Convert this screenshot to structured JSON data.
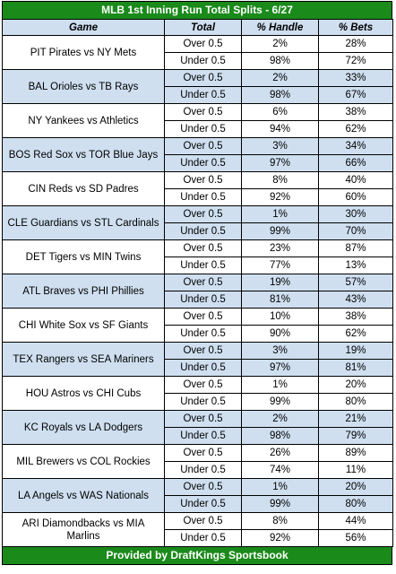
{
  "title": "MLB 1st Inning Run Total Splits - 6/27",
  "headers": [
    "Game",
    "Total",
    "% Handle",
    "% Bets"
  ],
  "footer": "Provided by DraftKings Sportsbook",
  "games": [
    {
      "game": "PIT Pirates vs NY Mets",
      "rows": [
        [
          "Over 0.5",
          "2%",
          "28%"
        ],
        [
          "Under 0.5",
          "98%",
          "72%"
        ]
      ]
    },
    {
      "game": "BAL Orioles vs TB Rays",
      "rows": [
        [
          "Over 0.5",
          "2%",
          "33%"
        ],
        [
          "Under 0.5",
          "98%",
          "67%"
        ]
      ]
    },
    {
      "game": "NY Yankees vs Athletics",
      "rows": [
        [
          "Over 0.5",
          "6%",
          "38%"
        ],
        [
          "Under 0.5",
          "94%",
          "62%"
        ]
      ]
    },
    {
      "game": "BOS Red Sox vs TOR Blue Jays",
      "rows": [
        [
          "Over 0.5",
          "3%",
          "34%"
        ],
        [
          "Under 0.5",
          "97%",
          "66%"
        ]
      ]
    },
    {
      "game": "CIN Reds vs SD Padres",
      "rows": [
        [
          "Over 0.5",
          "8%",
          "40%"
        ],
        [
          "Under 0.5",
          "92%",
          "60%"
        ]
      ]
    },
    {
      "game": "CLE Guardians vs STL Cardinals",
      "rows": [
        [
          "Over 0.5",
          "1%",
          "30%"
        ],
        [
          "Under 0.5",
          "99%",
          "70%"
        ]
      ]
    },
    {
      "game": "DET Tigers vs MIN Twins",
      "rows": [
        [
          "Over 0.5",
          "23%",
          "87%"
        ],
        [
          "Under 0.5",
          "77%",
          "13%"
        ]
      ]
    },
    {
      "game": "ATL Braves vs PHI Phillies",
      "rows": [
        [
          "Over 0.5",
          "19%",
          "57%"
        ],
        [
          "Under 0.5",
          "81%",
          "43%"
        ]
      ]
    },
    {
      "game": "CHI White Sox vs SF Giants",
      "rows": [
        [
          "Over 0.5",
          "10%",
          "38%"
        ],
        [
          "Under 0.5",
          "90%",
          "62%"
        ]
      ]
    },
    {
      "game": "TEX Rangers vs SEA Mariners",
      "rows": [
        [
          "Over 0.5",
          "3%",
          "19%"
        ],
        [
          "Under 0.5",
          "97%",
          "81%"
        ]
      ]
    },
    {
      "game": "HOU Astros vs CHI Cubs",
      "rows": [
        [
          "Over 0.5",
          "1%",
          "20%"
        ],
        [
          "Under 0.5",
          "99%",
          "80%"
        ]
      ]
    },
    {
      "game": "KC Royals vs LA Dodgers",
      "rows": [
        [
          "Over 0.5",
          "2%",
          "21%"
        ],
        [
          "Under 0.5",
          "98%",
          "79%"
        ]
      ]
    },
    {
      "game": "MIL Brewers vs COL Rockies",
      "rows": [
        [
          "Over 0.5",
          "26%",
          "89%"
        ],
        [
          "Under 0.5",
          "74%",
          "11%"
        ]
      ]
    },
    {
      "game": "LA Angels vs WAS Nationals",
      "rows": [
        [
          "Over 0.5",
          "1%",
          "20%"
        ],
        [
          "Under 0.5",
          "99%",
          "80%"
        ]
      ]
    },
    {
      "game": "ARI Diamondbacks vs MIA Marlins",
      "rows": [
        [
          "Over 0.5",
          "8%",
          "44%"
        ],
        [
          "Under 0.5",
          "92%",
          "56%"
        ]
      ]
    }
  ]
}
